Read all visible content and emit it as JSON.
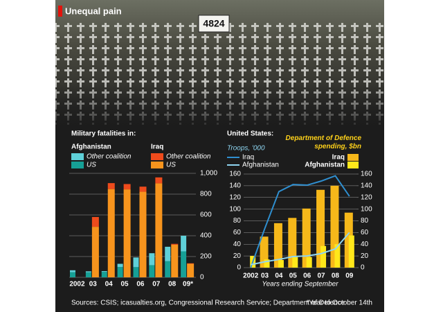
{
  "title": "Unequal pain",
  "sign": "4824",
  "source": "Sources: CSIS; icasualties.org, Congressional Research Service; Department of Defence",
  "footnote": "*Year to October 14th",
  "chart_data": [
    {
      "type": "grouped-stacked-bar",
      "subtitle": "Military fatalities in:",
      "categories": [
        "2002",
        "03",
        "04",
        "05",
        "06",
        "07",
        "08",
        "09*"
      ],
      "groups": [
        {
          "name": "Afghanistan",
          "series": [
            {
              "name": "Other coalition",
              "color": "#5fd0d8",
              "values": [
                19,
                10,
                8,
                31,
                93,
                115,
                139,
                150
              ]
            },
            {
              "name": "US",
              "color": "#16a096",
              "values": [
                49,
                48,
                52,
                99,
                98,
                117,
                155,
                250
              ]
            }
          ]
        },
        {
          "name": "Iraq",
          "series": [
            {
              "name": "Other coalition",
              "color": "#ee4b1c",
              "values": [
                null,
                94,
                57,
                51,
                49,
                57,
                8,
                5
              ]
            },
            {
              "name": "US",
              "color": "#f7941d",
              "values": [
                null,
                486,
                849,
                846,
                823,
                904,
                314,
                130
              ]
            }
          ]
        }
      ],
      "ylim": [
        0,
        1000
      ],
      "yticks": [
        0,
        200,
        400,
        600,
        800,
        {
          "value": 1000,
          "label": "1,000"
        }
      ],
      "grid": true
    },
    {
      "type": "bar-line",
      "subtitle": "United States:",
      "y_label": "Troops, '000",
      "y2_label": "Department of Defence spending, $bn",
      "x_label": "Years ending September",
      "categories": [
        "2002",
        "03",
        "04",
        "05",
        "06",
        "07",
        "08",
        "09"
      ],
      "series": [
        {
          "name": "Iraq",
          "color": "#2f8fd0",
          "axis": "y",
          "values": [
            0,
            67,
            130,
            142,
            141,
            148,
            157,
            122
          ]
        },
        {
          "name": "Afghanistan",
          "color": "#8fd6f2",
          "axis": "y",
          "values": [
            5,
            10,
            14,
            19,
            20,
            24,
            32,
            60
          ]
        },
        {
          "name": "Iraq",
          "color": "#f6b81a",
          "axis": "y2",
          "values": [
            null,
            53,
            76,
            85,
            101,
            133,
            140,
            94
          ]
        },
        {
          "name": "Afghanistan",
          "color": "#ffe81a",
          "axis": "y2",
          "values": [
            20,
            14,
            13,
            18,
            18,
            37,
            40,
            55
          ]
        }
      ],
      "ylim": [
        0,
        160
      ],
      "yticks": [
        0,
        20,
        40,
        60,
        80,
        100,
        120,
        140,
        160
      ],
      "y2lim": [
        0,
        160
      ],
      "y2ticks": [
        0,
        20,
        40,
        60,
        80,
        100,
        120,
        140,
        160
      ],
      "grid": true
    }
  ]
}
